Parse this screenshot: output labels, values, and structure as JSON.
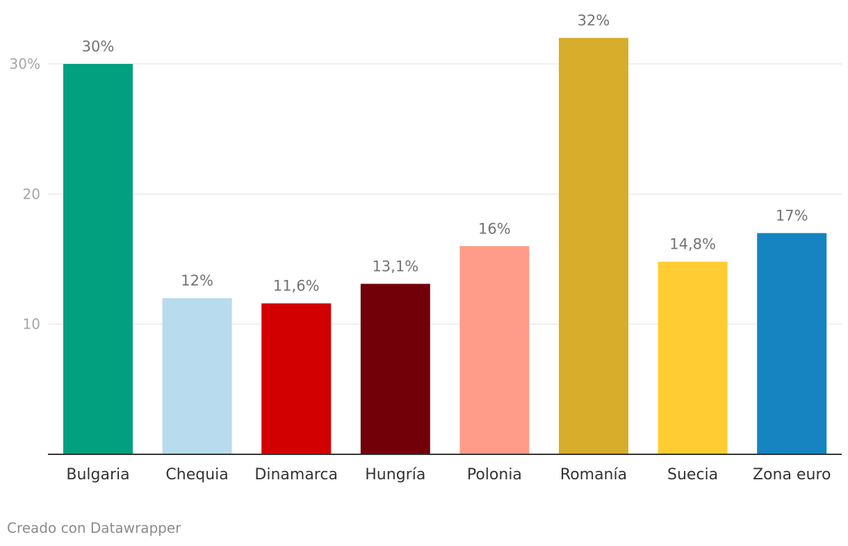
{
  "chart_data": {
    "type": "bar",
    "categories": [
      "Bulgaria",
      "Chequia",
      "Dinamarca",
      "Hungría",
      "Polonia",
      "Romanía",
      "Suecia",
      "Zona euro"
    ],
    "values": [
      30,
      12,
      11.6,
      13.1,
      16,
      32,
      14.8,
      17
    ],
    "value_labels": [
      "30%",
      "12%",
      "11,6%",
      "13,1%",
      "16%",
      "32%",
      "14,8%",
      "17%"
    ],
    "colors": [
      "#02a07e",
      "#b8dbed",
      "#d20000",
      "#720009",
      "#fe9b89",
      "#d7ad2b",
      "#ffcd33",
      "#1584c0"
    ],
    "y_ticks": [
      {
        "value": 10,
        "label": "10"
      },
      {
        "value": 20,
        "label": "20"
      },
      {
        "value": 30,
        "label": "30%"
      }
    ],
    "ylim": [
      0,
      32
    ],
    "grid": true,
    "legend": "none",
    "title": "",
    "xlabel": "",
    "ylabel": ""
  },
  "footer": {
    "credit": "Creado con Datawrapper"
  }
}
